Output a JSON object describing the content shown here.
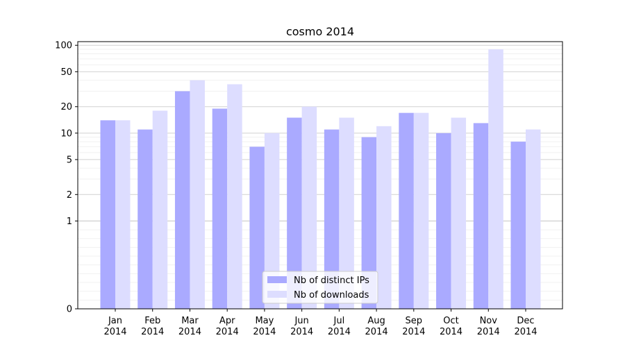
{
  "chart_data": {
    "type": "bar",
    "title": "cosmo 2014",
    "xlabel": "",
    "ylabel": "",
    "y_scale": "symlog",
    "ylim": [
      0,
      110
    ],
    "y_ticks": [
      0,
      1,
      2,
      5,
      10,
      20,
      50,
      100
    ],
    "categories": [
      [
        "Jan",
        "2014"
      ],
      [
        "Feb",
        "2014"
      ],
      [
        "Mar",
        "2014"
      ],
      [
        "Apr",
        "2014"
      ],
      [
        "May",
        "2014"
      ],
      [
        "Jun",
        "2014"
      ],
      [
        "Jul",
        "2014"
      ],
      [
        "Aug",
        "2014"
      ],
      [
        "Sep",
        "2014"
      ],
      [
        "Oct",
        "2014"
      ],
      [
        "Nov",
        "2014"
      ],
      [
        "Dec",
        "2014"
      ]
    ],
    "series": [
      {
        "name": "Nb of distinct IPs",
        "color": "#aaaaff",
        "values": [
          14,
          11,
          30,
          19,
          7,
          15,
          11,
          9,
          17,
          10,
          13,
          8
        ]
      },
      {
        "name": "Nb of downloads",
        "color": "#ddddff",
        "values": [
          14,
          18,
          40,
          36,
          10,
          20,
          15,
          12,
          17,
          15,
          90,
          11
        ]
      }
    ],
    "grid": "horizontal",
    "legend_position": "lower center"
  }
}
